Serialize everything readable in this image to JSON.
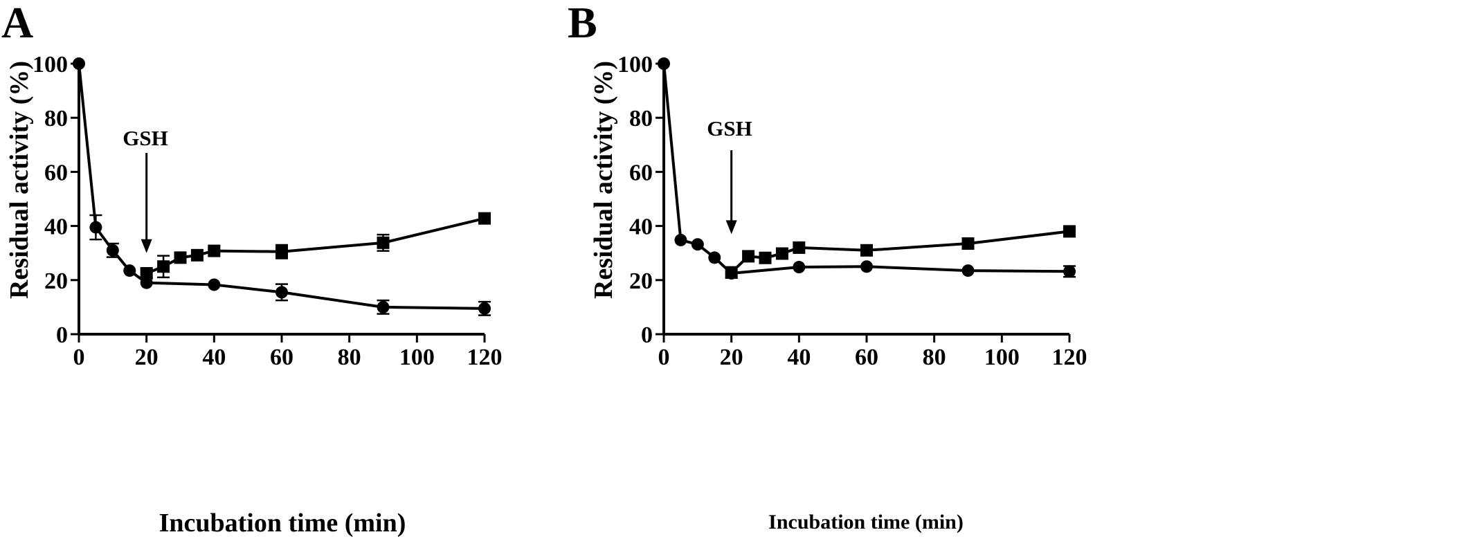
{
  "chart_data": [
    {
      "panel": "A",
      "type": "line",
      "xlabel": "Incubation time (min)",
      "ylabel": "Residual activity (%)",
      "xlim": [
        0,
        120
      ],
      "ylim": [
        0,
        100
      ],
      "xticks": [
        0,
        20,
        40,
        60,
        80,
        100,
        120
      ],
      "yticks": [
        0,
        20,
        40,
        60,
        80,
        100
      ],
      "annotation": {
        "text": "GSH",
        "x": 20,
        "arrow_from_y": 67,
        "arrow_to_y": 30
      },
      "series": [
        {
          "name": "circles",
          "marker": "circle",
          "x": [
            0,
            5,
            10,
            15,
            20,
            40,
            60,
            90,
            120
          ],
          "y": [
            100,
            39.5,
            31,
            23.5,
            19,
            18.3,
            15.5,
            10,
            9.5
          ],
          "err": [
            0,
            4.5,
            2.5,
            0,
            0,
            0,
            3,
            2.5,
            2.5
          ]
        },
        {
          "name": "squares",
          "marker": "square",
          "x": [
            20,
            25,
            30,
            35,
            40,
            60,
            90,
            120
          ],
          "y": [
            22.5,
            25,
            28.3,
            29.2,
            30.8,
            30.5,
            33.8,
            42.8
          ],
          "err": [
            1.5,
            4,
            1.5,
            0,
            0,
            2.5,
            3,
            0
          ]
        }
      ]
    },
    {
      "panel": "B",
      "type": "line",
      "xlabel": "Incubation time (min)",
      "ylabel": "Residual activity (%)",
      "xlim": [
        0,
        120
      ],
      "ylim": [
        0,
        100
      ],
      "xticks": [
        0,
        20,
        40,
        60,
        80,
        100,
        120
      ],
      "yticks": [
        0,
        20,
        40,
        60,
        80,
        100
      ],
      "annotation": {
        "text": "GSH",
        "x": 20,
        "arrow_from_y": 68,
        "arrow_to_y": 37
      },
      "series": [
        {
          "name": "circles",
          "marker": "circle",
          "x": [
            0,
            5,
            10,
            15,
            20,
            40,
            60,
            90,
            120
          ],
          "y": [
            100,
            34.8,
            33.2,
            28.3,
            22.5,
            24.8,
            25,
            23.5,
            23.2
          ],
          "err": [
            0,
            0,
            0,
            0,
            0,
            0,
            0,
            0,
            2
          ]
        },
        {
          "name": "squares",
          "marker": "square",
          "x": [
            20,
            25,
            30,
            35,
            40,
            60,
            90,
            120
          ],
          "y": [
            22.8,
            28.8,
            28.2,
            29.8,
            32,
            31,
            33.5,
            38
          ],
          "err": [
            2,
            0,
            0,
            0,
            0,
            0,
            0,
            0
          ]
        }
      ]
    }
  ]
}
